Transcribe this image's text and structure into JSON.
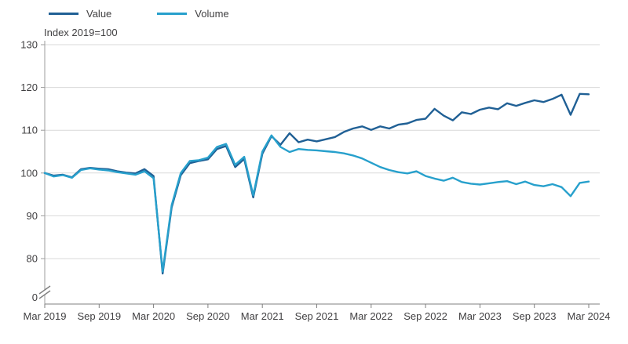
{
  "chart_data": {
    "type": "line",
    "title": "",
    "ylabel": "Index 2019=100",
    "xlabel": "",
    "x_start": "Mar 2019",
    "x_end": "Mar 2024",
    "frequency": "monthly",
    "x_tick_labels": [
      "Mar 2019",
      "Sep 2019",
      "Mar 2020",
      "Sep 2020",
      "Mar 2021",
      "Sep 2021",
      "Mar 2022",
      "Sep 2022",
      "Mar 2023",
      "Sep 2023",
      "Mar 2024"
    ],
    "x_tick_positions": [
      0,
      6,
      12,
      18,
      24,
      30,
      36,
      42,
      48,
      54,
      60
    ],
    "y_axis": {
      "ticks": [
        0,
        80,
        90,
        100,
        110,
        120,
        130
      ],
      "top": 130,
      "break": true
    },
    "grid": "horizontal",
    "legend_position": "top-left",
    "series": [
      {
        "name": "Value",
        "color": "#206095",
        "values": [
          100,
          99.4,
          99.6,
          99.0,
          100.9,
          101.2,
          101.0,
          100.9,
          100.4,
          100.1,
          99.9,
          100.9,
          99.3,
          76.5,
          92.0,
          99.5,
          102.3,
          102.8,
          103.2,
          105.6,
          106.3,
          101.4,
          103.3,
          94.3,
          104.5,
          108.6,
          106.6,
          109.3,
          107.2,
          107.8,
          107.4,
          107.9,
          108.4,
          109.6,
          110.4,
          110.9,
          110.1,
          110.9,
          110.4,
          111.3,
          111.6,
          112.4,
          112.7,
          115.0,
          113.4,
          112.3,
          114.2,
          113.8,
          114.8,
          115.3,
          114.9,
          116.3,
          115.7,
          116.4,
          117.0,
          116.6,
          117.3,
          118.3,
          113.6,
          118.5,
          118.4
        ]
      },
      {
        "name": "Volume",
        "color": "#27a0cc",
        "values": [
          100,
          99.2,
          99.5,
          98.9,
          100.7,
          101.1,
          100.8,
          100.6,
          100.2,
          99.9,
          99.6,
          100.4,
          98.8,
          77.0,
          92.5,
          100.0,
          102.8,
          103.0,
          103.6,
          106.1,
          106.8,
          101.9,
          103.8,
          94.8,
          105.0,
          108.8,
          106.1,
          104.9,
          105.6,
          105.4,
          105.3,
          105.1,
          104.9,
          104.6,
          104.1,
          103.4,
          102.4,
          101.4,
          100.7,
          100.2,
          99.9,
          100.4,
          99.3,
          98.7,
          98.2,
          98.9,
          97.9,
          97.5,
          97.3,
          97.6,
          97.9,
          98.1,
          97.4,
          98.0,
          97.2,
          96.9,
          97.4,
          96.7,
          94.6,
          97.7,
          98.0
        ]
      }
    ]
  }
}
